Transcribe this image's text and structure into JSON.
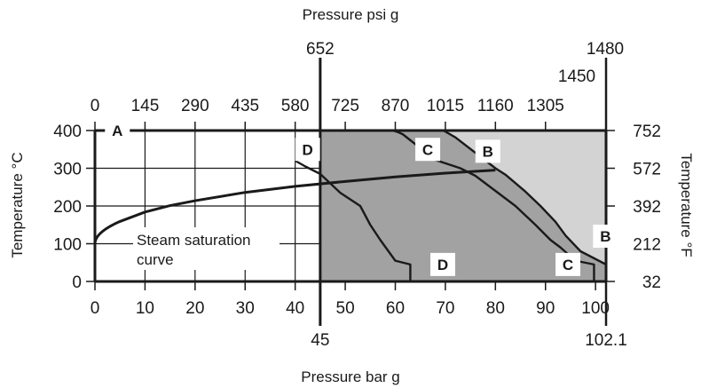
{
  "chart_data": {
    "type": "line",
    "title": "",
    "xlabel": "Pressure bar g",
    "xlabel_top": "Pressure psi g",
    "ylabel_left": "Temperature  °C",
    "ylabel_right": "Temperature  °F",
    "xlim": [
      0,
      102.1
    ],
    "ylim": [
      0,
      400
    ],
    "bottom_ticks": [
      "0",
      "10",
      "20",
      "30",
      "40",
      "50",
      "60",
      "70",
      "80",
      "90",
      "100"
    ],
    "bottom_tick_values": [
      0,
      10,
      20,
      30,
      40,
      50,
      60,
      70,
      80,
      90,
      100
    ],
    "bottom_extra_labels": [
      {
        "value": 45,
        "label": "45"
      },
      {
        "value": 102.1,
        "label": "102.1"
      }
    ],
    "top_ticks": [
      "0",
      "145",
      "290",
      "435",
      "580",
      "725",
      "870",
      "1015",
      "1160",
      "1305"
    ],
    "top_tick_values": [
      0,
      10,
      20,
      30,
      40,
      50,
      60,
      70,
      80,
      90
    ],
    "top_extra_labels": [
      {
        "value": 45,
        "label": "652"
      },
      {
        "value": 100,
        "label": "1450"
      },
      {
        "value": 102.1,
        "label": "1480"
      }
    ],
    "left_ticks": [
      "0",
      "100",
      "200",
      "300",
      "400"
    ],
    "left_tick_values": [
      0,
      100,
      200,
      300,
      400
    ],
    "right_ticks": [
      "32",
      "212",
      "392",
      "572",
      "752"
    ],
    "right_tick_values": [
      0,
      100,
      200,
      300,
      400
    ],
    "grid": true,
    "steam_saturation_label": "Steam saturation\ncurve",
    "steam_saturation_curve": {
      "x": [
        0,
        1,
        2.5,
        5,
        10,
        15,
        20,
        30,
        40,
        50,
        60,
        70,
        80
      ],
      "y": [
        100,
        120,
        139,
        159,
        184,
        201,
        214,
        236,
        252,
        265,
        277,
        287,
        295
      ]
    },
    "regions": [
      {
        "label": "A",
        "color": "#ffffff",
        "x_from": 0,
        "x_to": 45
      },
      {
        "label": "D",
        "color": "#a2a2a2",
        "x_from": 45,
        "x_to": 102.1
      },
      {
        "label": "B",
        "color": "#d3d3d3",
        "x_from": 78,
        "x_to": 102.1
      }
    ],
    "series": [
      {
        "name": "B",
        "x": [
          69.6,
          72,
          80,
          82,
          86,
          89,
          92,
          94,
          97,
          102.1,
          102.1
        ],
        "y": [
          400,
          382,
          300,
          283,
          238,
          200,
          158,
          122,
          80,
          45,
          0
        ]
      },
      {
        "name": "C",
        "x": [
          59.5,
          60.5,
          61.5,
          68,
          73,
          76,
          84,
          88,
          91,
          93,
          96,
          99.7,
          99.7
        ],
        "y": [
          400,
          396,
          390,
          322,
          300,
          280,
          200,
          150,
          110,
          90,
          55,
          45,
          0
        ]
      },
      {
        "name": "D",
        "x": [
          40,
          42,
          45,
          49,
          53,
          55,
          57,
          60,
          63,
          63
        ],
        "y": [
          320,
          305,
          285,
          235,
          200,
          150,
          110,
          55,
          45,
          0
        ]
      }
    ],
    "region_labels": [
      {
        "label": "A",
        "x": 2,
        "y": 400
      },
      {
        "label": "D",
        "x": 40,
        "y": 350
      },
      {
        "label": "C",
        "x": 64,
        "y": 350
      },
      {
        "label": "B",
        "x": 76,
        "y": 345
      },
      {
        "label": "B",
        "x": 99.5,
        "y": 120
      },
      {
        "label": "D",
        "x": 67,
        "y": 45
      },
      {
        "label": "C",
        "x": 92,
        "y": 45
      }
    ],
    "colors": {
      "dark_zone": "#a2a2a2",
      "light_zone": "#d3d3d3",
      "line": "#1a1a1a"
    }
  }
}
